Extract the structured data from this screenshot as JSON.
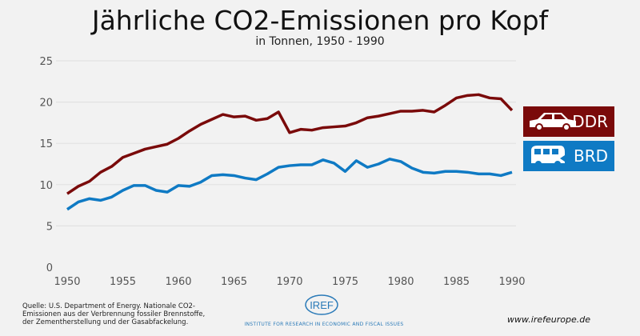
{
  "chart_data": {
    "type": "line",
    "title": "Jährliche CO2-Emissionen pro Kopf",
    "subtitle": "in Tonnen, 1950 - 1990",
    "xlabel": "",
    "ylabel": "",
    "xlim": [
      1950,
      1990
    ],
    "ylim": [
      0,
      25
    ],
    "xticks": [
      1950,
      1955,
      1960,
      1965,
      1970,
      1975,
      1980,
      1985,
      1990
    ],
    "yticks": [
      0,
      5,
      10,
      15,
      20,
      25
    ],
    "grid": true,
    "legend": "right",
    "x": [
      1950,
      1951,
      1952,
      1953,
      1954,
      1955,
      1956,
      1957,
      1958,
      1959,
      1960,
      1961,
      1962,
      1963,
      1964,
      1965,
      1966,
      1967,
      1968,
      1969,
      1970,
      1971,
      1972,
      1973,
      1974,
      1975,
      1976,
      1977,
      1978,
      1979,
      1980,
      1981,
      1982,
      1983,
      1984,
      1985,
      1986,
      1987,
      1988,
      1989,
      1990
    ],
    "series": [
      {
        "name": "DDR",
        "color": "#7a0a0a",
        "values": [
          8.9,
          9.8,
          10.4,
          11.5,
          12.2,
          13.3,
          13.8,
          14.3,
          14.6,
          14.9,
          15.6,
          16.5,
          17.3,
          17.9,
          18.5,
          18.2,
          18.3,
          17.8,
          18.0,
          18.8,
          16.3,
          16.7,
          16.6,
          16.9,
          17.0,
          17.1,
          17.5,
          18.1,
          18.3,
          18.6,
          18.9,
          18.9,
          19.0,
          18.8,
          19.6,
          20.5,
          20.8,
          20.9,
          20.5,
          20.4,
          19.0
        ]
      },
      {
        "name": "BRD",
        "color": "#0f7ac4",
        "values": [
          7.0,
          7.9,
          8.3,
          8.1,
          8.5,
          9.3,
          9.9,
          9.9,
          9.3,
          9.1,
          9.9,
          9.8,
          10.3,
          11.1,
          11.2,
          11.1,
          10.8,
          10.6,
          11.3,
          12.1,
          12.3,
          12.4,
          12.4,
          13.0,
          12.6,
          11.6,
          12.9,
          12.1,
          12.5,
          13.1,
          12.8,
          12.0,
          11.5,
          11.4,
          11.6,
          11.6,
          11.5,
          11.3,
          11.3,
          11.1,
          11.5
        ]
      }
    ],
    "legend_icons": {
      "DDR": "car-icon",
      "BRD": "van-icon"
    }
  },
  "footer": {
    "source": "Quelle: U.S. Department of Energy. Nationale CO2-Emissionen aus der Verbrennung fossiler Brennstoffe, der Zementherstellung und der Gasabfackelung.",
    "logo": "IREF",
    "institute": "INSTITUTE FOR RESEARCH IN ECONOMIC AND FISCAL ISSUES",
    "website": "www.irefeurope.de"
  }
}
